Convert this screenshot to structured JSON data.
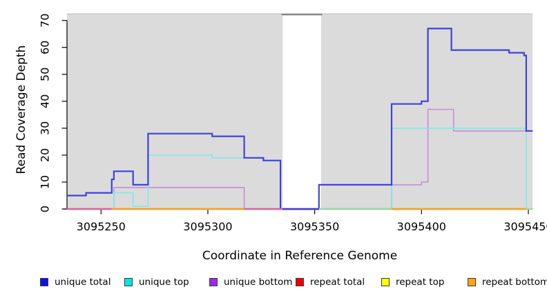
{
  "figure": {
    "y_axis": {
      "title": "Read Coverage Depth",
      "ticks": [
        0,
        10,
        20,
        30,
        40,
        50,
        60,
        70
      ]
    },
    "x_axis": {
      "title": "Coordinate in Reference Genome",
      "tick_values": [
        3095250,
        3095300,
        3095350,
        3095400,
        3095450
      ],
      "tick_labels": [
        "3095250",
        "3095300",
        "3095350",
        "3095400",
        "3095450"
      ]
    },
    "legend": [
      {
        "label": "unique total",
        "color": "#0F0FEB"
      },
      {
        "label": "unique top",
        "color": "#00E6E6"
      },
      {
        "label": "unique bottom",
        "color": "#A225F0"
      },
      {
        "label": "repeat total",
        "color": "#F00000"
      },
      {
        "label": "repeat top",
        "color": "#FFFF00"
      },
      {
        "label": "repeat bottom",
        "color": "#FFA513"
      }
    ]
  },
  "chart_data": {
    "type": "line",
    "step": true,
    "title": "",
    "xlabel": "Coordinate in Reference Genome",
    "ylabel": "Read Coverage Depth",
    "xlim": [
      3095234,
      3095452
    ],
    "ylim": [
      0,
      72
    ],
    "grid": false,
    "legend_position": "bottom",
    "x_ticks": [
      3095250,
      3095300,
      3095350,
      3095400,
      3095450
    ],
    "y_ticks": [
      0,
      10,
      20,
      30,
      40,
      50,
      60,
      70
    ],
    "covered_regions": [
      [
        3095234,
        3095335
      ],
      [
        3095353,
        3095452
      ]
    ],
    "gap_region": [
      3095335,
      3095353
    ],
    "background_color": "#DBDBDB",
    "series": [
      {
        "name": "unique total",
        "color": "#3030D9",
        "width": 2.2,
        "opacity": 0.9,
        "points": [
          [
            3095234,
            5
          ],
          [
            3095243,
            6
          ],
          [
            3095255,
            11
          ],
          [
            3095256,
            14
          ],
          [
            3095265,
            9
          ],
          [
            3095272,
            28
          ],
          [
            3095302,
            27
          ],
          [
            3095317,
            19
          ],
          [
            3095326,
            18
          ],
          [
            3095334,
            0
          ],
          [
            3095352,
            9
          ],
          [
            3095386,
            39
          ],
          [
            3095400,
            40
          ],
          [
            3095403,
            67
          ],
          [
            3095414,
            59
          ],
          [
            3095441,
            58
          ],
          [
            3095448,
            57
          ],
          [
            3095449,
            29
          ],
          [
            3095452,
            29
          ]
        ]
      },
      {
        "name": "unique top",
        "color": "#7FE9E9",
        "width": 1.6,
        "opacity": 1,
        "points": [
          [
            3095234,
            0
          ],
          [
            3095256,
            6
          ],
          [
            3095265,
            1
          ],
          [
            3095272,
            20
          ],
          [
            3095302,
            19
          ],
          [
            3095326,
            18
          ],
          [
            3095334,
            0
          ],
          [
            3095386,
            30
          ],
          [
            3095449,
            0
          ],
          [
            3095452,
            0
          ]
        ]
      },
      {
        "name": "unique bottom",
        "color": "#C18FDB",
        "width": 1.6,
        "opacity": 1,
        "points": [
          [
            3095234,
            0
          ],
          [
            3095256,
            8
          ],
          [
            3095317,
            0
          ],
          [
            3095386,
            9
          ],
          [
            3095400,
            10
          ],
          [
            3095403,
            37
          ],
          [
            3095415,
            29
          ],
          [
            3095452,
            29
          ]
        ]
      },
      {
        "name": "repeat total",
        "color": "#DD0000",
        "width": 1.6,
        "opacity": 1,
        "points": [
          [
            3095234,
            0
          ],
          [
            3095452,
            0
          ]
        ]
      },
      {
        "name": "repeat top",
        "color": "#EEEE00",
        "width": 1.6,
        "opacity": 1,
        "points": [
          [
            3095234,
            0
          ],
          [
            3095452,
            0
          ]
        ]
      },
      {
        "name": "repeat bottom",
        "color": "#FF9D1E",
        "width": 2.2,
        "opacity": 1,
        "points": [
          [
            3095234,
            0
          ],
          [
            3095452,
            0
          ]
        ]
      }
    ],
    "baseline_overlay_segments": [
      {
        "from": 3095234,
        "to": 3095255,
        "color": "#D0679B"
      },
      {
        "from": 3095255,
        "to": 3095317,
        "color": "#FF9D1E"
      },
      {
        "from": 3095317,
        "to": 3095335,
        "color": "#D0679B"
      },
      {
        "from": 3095335,
        "to": 3095352,
        "color": "#4638D6"
      },
      {
        "from": 3095352,
        "to": 3095386,
        "color": "#97D8AB"
      },
      {
        "from": 3095386,
        "to": 3095449,
        "color": "#FF9D1E"
      },
      {
        "from": 3095449,
        "to": 3095452,
        "color": "#97D8AB"
      }
    ]
  }
}
